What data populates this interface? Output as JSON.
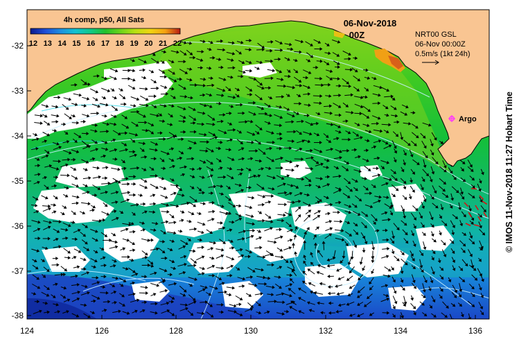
{
  "colorbar": {
    "title": "4h comp, p50, All Sats",
    "ticks": [
      "12",
      "13",
      "14",
      "15",
      "16",
      "17",
      "18",
      "19",
      "20",
      "21",
      "22"
    ],
    "colors": [
      "#0a1a8c",
      "#1f4fd9",
      "#1e8fe0",
      "#12c3d2",
      "#10c98a",
      "#22c12c",
      "#6bd41a",
      "#b8e012",
      "#f0d411",
      "#f5a212",
      "#e85512",
      "#b81a14"
    ]
  },
  "date_title": "06-Nov-2018",
  "time_title": "00Z",
  "current_legend": {
    "line1": "NRT00 GSL",
    "line2": "06-Nov 00:00Z",
    "line3": "0.5m/s (1kt 24h)"
  },
  "argo_label": "Argo",
  "credit": "© IMOS 11-Nov-2018 11:27 Hobart Time",
  "axes": {
    "y_ticks": [
      "-32",
      "-33",
      "-34",
      "-35",
      "-36",
      "-37",
      "-38"
    ],
    "x_ticks": [
      "124",
      "126",
      "128",
      "130",
      "132",
      "134",
      "136"
    ]
  },
  "map_colors": {
    "land": "#f9c592",
    "no_data": "#ffffff",
    "contour": "#c8f0ff",
    "vectors": "#000000",
    "flagged_vectors": "#d81010",
    "argo_marker": "#ff33ff"
  }
}
